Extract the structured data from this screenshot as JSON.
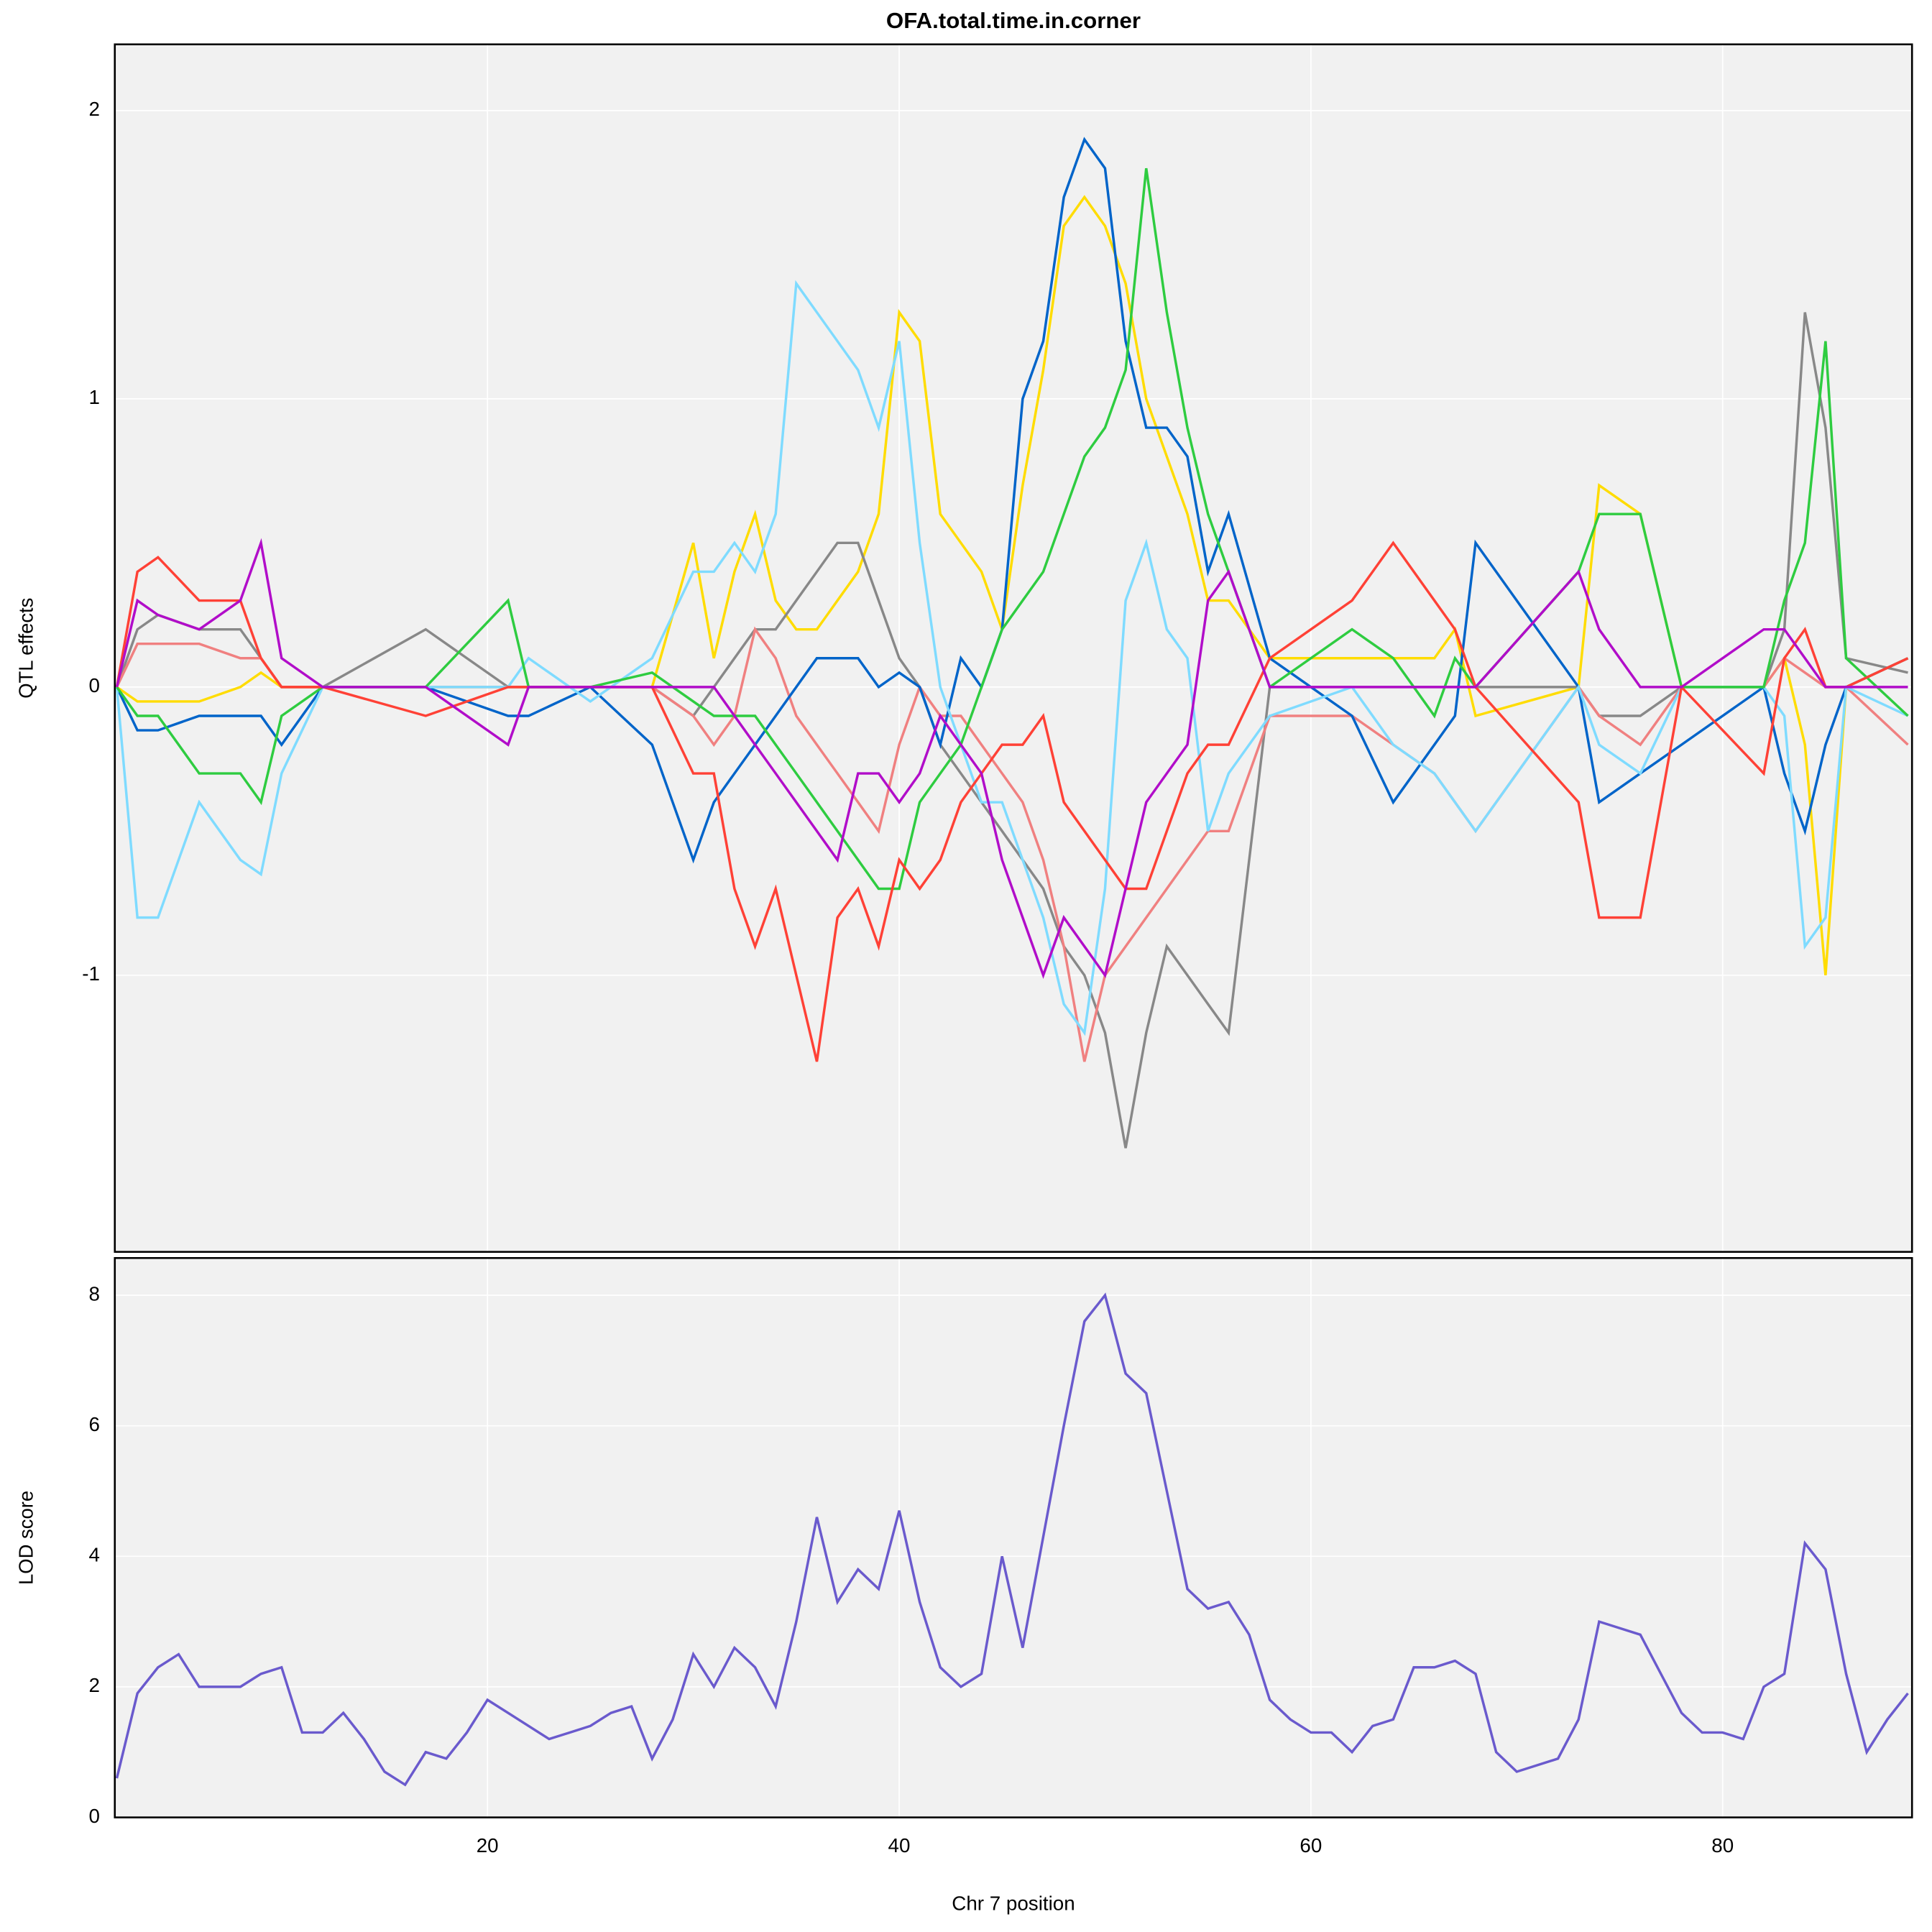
{
  "chart_data": [
    {
      "type": "line",
      "title": "OFA.total.time.in.corner",
      "ylabel": "QTL effects",
      "x": [
        2,
        3,
        4,
        6,
        8,
        9,
        10,
        12,
        17,
        21,
        22,
        25,
        28,
        30,
        31,
        32,
        33,
        34,
        35,
        36,
        37,
        38,
        39,
        40,
        41,
        42,
        43,
        44,
        45,
        46,
        47,
        48,
        49,
        50,
        51,
        52,
        53,
        54,
        55,
        56,
        58,
        62,
        64,
        66,
        67,
        68,
        73,
        74,
        76,
        78,
        82,
        83,
        84,
        85,
        86,
        89
      ],
      "series": [
        {
          "color": "#ffdc00",
          "values": [
            0,
            -0.05,
            -0.05,
            -0.05,
            0,
            0.05,
            0,
            0,
            0,
            0,
            0,
            0,
            0,
            0.5,
            0.1,
            0.4,
            0.6,
            0.3,
            0.2,
            0.2,
            0.3,
            0.4,
            0.6,
            1.3,
            1.2,
            0.6,
            0.5,
            0.4,
            0.2,
            0.7,
            1.1,
            1.6,
            1.7,
            1.6,
            1.4,
            1.0,
            0.8,
            0.6,
            0.3,
            0.3,
            0.1,
            0.1,
            0.1,
            0.1,
            0.2,
            -0.1,
            0,
            0.7,
            0.6,
            0,
            0,
            0.1,
            -0.2,
            -1.0,
            0,
            0.1
          ]
        },
        {
          "color": "#888888",
          "values": [
            0,
            0.2,
            0.25,
            0.2,
            0.2,
            0.1,
            0,
            0,
            0.2,
            0,
            0,
            0,
            0,
            -0.1,
            0,
            0.1,
            0.2,
            0.2,
            0.3,
            0.4,
            0.5,
            0.5,
            0.3,
            0.1,
            0,
            -0.2,
            -0.3,
            -0.4,
            -0.5,
            -0.6,
            -0.7,
            -0.9,
            -1.0,
            -1.2,
            -1.6,
            -1.2,
            -0.9,
            -1.0,
            -1.1,
            -1.2,
            0,
            0,
            0,
            0,
            0,
            0,
            0,
            -0.1,
            -0.1,
            0,
            0,
            0.2,
            1.3,
            0.9,
            0.1,
            0.05
          ]
        },
        {
          "color": "#f08080",
          "values": [
            0,
            0.15,
            0.15,
            0.15,
            0.1,
            0.1,
            0,
            0,
            0,
            0,
            0,
            0,
            0,
            -0.1,
            -0.2,
            -0.1,
            0.2,
            0.1,
            -0.1,
            -0.2,
            -0.3,
            -0.4,
            -0.5,
            -0.2,
            0,
            -0.1,
            -0.1,
            -0.2,
            -0.3,
            -0.4,
            -0.6,
            -0.9,
            -1.3,
            -1.0,
            -0.9,
            -0.8,
            -0.7,
            -0.6,
            -0.5,
            -0.5,
            -0.1,
            -0.1,
            -0.2,
            -0.3,
            -0.4,
            -0.5,
            0,
            -0.1,
            -0.2,
            0,
            0,
            0.1,
            0.05,
            0,
            0,
            -0.2
          ]
        },
        {
          "color": "#0064c9",
          "values": [
            0,
            -0.15,
            -0.15,
            -0.1,
            -0.1,
            -0.1,
            -0.2,
            0,
            0,
            -0.1,
            -0.1,
            0,
            -0.2,
            -0.6,
            -0.4,
            -0.3,
            -0.2,
            -0.1,
            0,
            0.1,
            0.1,
            0.1,
            0,
            0.05,
            0,
            -0.2,
            0.1,
            0,
            0.2,
            1.0,
            1.2,
            1.7,
            1.9,
            1.8,
            1.2,
            0.9,
            0.9,
            0.8,
            0.4,
            0.6,
            0.1,
            -0.1,
            -0.4,
            -0.2,
            -0.1,
            0.5,
            0,
            -0.4,
            -0.3,
            -0.2,
            0,
            -0.3,
            -0.5,
            -0.2,
            0,
            0.1
          ]
        },
        {
          "color": "#7fdbff",
          "values": [
            0,
            -0.8,
            -0.8,
            -0.4,
            -0.6,
            -0.65,
            -0.3,
            0,
            0,
            0,
            0.1,
            -0.05,
            0.1,
            0.4,
            0.4,
            0.5,
            0.4,
            0.6,
            1.4,
            1.3,
            1.2,
            1.1,
            0.9,
            1.2,
            0.5,
            0,
            -0.2,
            -0.4,
            -0.4,
            -0.6,
            -0.8,
            -1.1,
            -1.2,
            -0.7,
            0.3,
            0.5,
            0.2,
            0.1,
            -0.5,
            -0.3,
            -0.1,
            0,
            -0.2,
            -0.3,
            -0.4,
            -0.5,
            0,
            -0.2,
            -0.3,
            0,
            0,
            -0.1,
            -0.9,
            -0.8,
            0,
            -0.1
          ]
        },
        {
          "color": "#2ecc40",
          "values": [
            0,
            -0.1,
            -0.1,
            -0.3,
            -0.3,
            -0.4,
            -0.1,
            0,
            0,
            0.3,
            0,
            0,
            0.05,
            -0.05,
            -0.1,
            -0.1,
            -0.1,
            -0.2,
            -0.3,
            -0.4,
            -0.5,
            -0.6,
            -0.7,
            -0.7,
            -0.4,
            -0.3,
            -0.2,
            0,
            0.2,
            0.3,
            0.4,
            0.6,
            0.8,
            0.9,
            1.1,
            1.8,
            1.3,
            0.9,
            0.6,
            0.4,
            0,
            0.2,
            0.1,
            -0.1,
            0.1,
            0,
            0.4,
            0.6,
            0.6,
            0,
            0,
            0.3,
            0.5,
            1.2,
            0.1,
            -0.1
          ]
        },
        {
          "color": "#ff4136",
          "values": [
            0,
            0.4,
            0.45,
            0.3,
            0.3,
            0.1,
            0,
            0,
            -0.1,
            0,
            0,
            0,
            0,
            -0.3,
            -0.3,
            -0.7,
            -0.9,
            -0.7,
            -1.0,
            -1.3,
            -0.8,
            -0.7,
            -0.9,
            -0.6,
            -0.7,
            -0.6,
            -0.4,
            -0.3,
            -0.2,
            -0.2,
            -0.1,
            -0.4,
            -0.5,
            -0.6,
            -0.7,
            -0.7,
            -0.5,
            -0.3,
            -0.2,
            -0.2,
            0.1,
            0.3,
            0.5,
            0.3,
            0.2,
            0,
            -0.4,
            -0.8,
            -0.8,
            0,
            -0.3,
            0.1,
            0.2,
            0,
            0,
            0.1
          ]
        },
        {
          "color": "#b10dc9",
          "values": [
            0,
            0.3,
            0.25,
            0.2,
            0.3,
            0.5,
            0.1,
            0,
            0,
            -0.2,
            0,
            0,
            0,
            0,
            0,
            -0.1,
            -0.2,
            -0.3,
            -0.4,
            -0.5,
            -0.6,
            -0.3,
            -0.3,
            -0.4,
            -0.3,
            -0.1,
            -0.2,
            -0.3,
            -0.6,
            -0.8,
            -1.0,
            -0.8,
            -0.9,
            -1.0,
            -0.7,
            -0.4,
            -0.3,
            -0.2,
            0.3,
            0.4,
            0,
            0,
            0,
            0,
            0,
            0,
            0.4,
            0.2,
            0,
            0,
            0.2,
            0.2,
            0.1,
            0,
            0,
            0
          ]
        }
      ],
      "xlim": [
        1.9,
        89.2
      ],
      "xticks": [
        20,
        40,
        60,
        80
      ],
      "ylim": [
        -1.96,
        2.23
      ],
      "yticks": [
        -1,
        0,
        1,
        2
      ],
      "grid": true
    },
    {
      "type": "line",
      "xlabel": "Chr 7 position",
      "ylabel": "LOD score",
      "x": [
        2,
        3,
        4,
        5,
        6,
        7,
        8,
        9,
        10,
        11,
        12,
        13,
        14,
        15,
        16,
        17,
        18,
        19,
        20,
        21,
        22,
        23,
        24,
        25,
        26,
        27,
        28,
        29,
        30,
        31,
        32,
        33,
        34,
        35,
        36,
        37,
        38,
        39,
        40,
        41,
        42,
        43,
        44,
        45,
        46,
        47,
        48,
        49,
        50,
        51,
        52,
        53,
        54,
        55,
        56,
        57,
        58,
        59,
        60,
        61,
        62,
        63,
        64,
        65,
        66,
        67,
        68,
        69,
        70,
        71,
        72,
        73,
        74,
        75,
        76,
        77,
        78,
        79,
        80,
        81,
        82,
        83,
        84,
        85,
        86,
        87,
        88,
        89
      ],
      "series": [
        {
          "color": "#6a5acd",
          "values": [
            0.6,
            1.9,
            2.3,
            2.5,
            2.0,
            2.0,
            2.0,
            2.2,
            2.3,
            1.3,
            1.3,
            1.6,
            1.2,
            0.7,
            0.5,
            1.0,
            0.9,
            1.3,
            1.8,
            1.6,
            1.4,
            1.2,
            1.3,
            1.4,
            1.6,
            1.7,
            0.9,
            1.5,
            2.5,
            2.0,
            2.6,
            2.3,
            1.7,
            3.0,
            4.6,
            3.3,
            3.8,
            3.5,
            4.7,
            3.3,
            2.3,
            2.0,
            2.2,
            4.0,
            2.6,
            4.3,
            6.0,
            7.6,
            8.0,
            6.8,
            6.5,
            5.0,
            3.5,
            3.2,
            3.3,
            2.8,
            1.8,
            1.5,
            1.3,
            1.3,
            1.0,
            1.4,
            1.5,
            2.3,
            2.3,
            2.4,
            2.2,
            1.0,
            0.7,
            0.8,
            0.9,
            1.5,
            3.0,
            2.9,
            2.8,
            2.2,
            1.6,
            1.3,
            1.3,
            1.2,
            2.0,
            2.2,
            4.2,
            3.8,
            2.2,
            1.0,
            1.5,
            1.9
          ]
        }
      ],
      "xlim": [
        1.9,
        89.2
      ],
      "xticks": [
        20,
        40,
        60,
        80
      ],
      "ylim": [
        0,
        8.57
      ],
      "yticks": [
        0,
        2,
        4,
        6,
        8
      ],
      "grid": true
    }
  ]
}
